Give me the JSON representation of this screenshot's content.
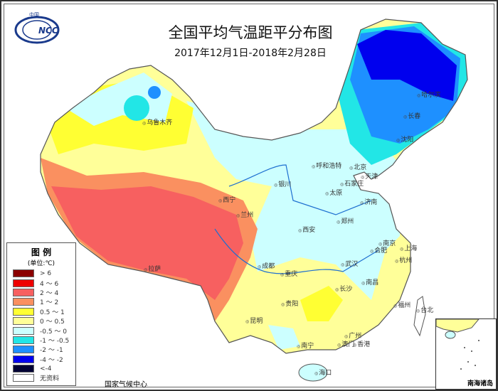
{
  "header": {
    "title": "全国平均气温距平分布图",
    "subtitle": "2017年12月1日-2018年2月28日",
    "logo_text": "NCC",
    "logo_top_text": "中国"
  },
  "legend": {
    "title": "图 例",
    "unit": "(单位:℃)",
    "items": [
      {
        "label": "> 6",
        "color": "#8b0000"
      },
      {
        "label": "4 ～ 6",
        "color": "#ee0000"
      },
      {
        "label": "2 ～ 4",
        "color": "#f76060"
      },
      {
        "label": "1 ～ 2",
        "color": "#fa9060"
      },
      {
        "label": "0.5 ～ 1",
        "color": "#ffff33"
      },
      {
        "label": "0 ～ 0.5",
        "color": "#ffff99"
      },
      {
        "label": "-0.5 ～ 0",
        "color": "#ccffff"
      },
      {
        "label": "-1 ～ -0.5",
        "color": "#22e6e6"
      },
      {
        "label": "-2 ～ -1",
        "color": "#1e90ff"
      },
      {
        "label": "-4 ～ -2",
        "color": "#0000ee"
      },
      {
        "label": "<-4",
        "color": "#000033"
      },
      {
        "label": "无资料",
        "color": "#ffffff"
      }
    ]
  },
  "map": {
    "cities": [
      "乌鲁木齐",
      "哈尔滨",
      "长春",
      "沈阳",
      "呼和浩特",
      "北京",
      "天津",
      "银川",
      "石家庄",
      "太原",
      "济南",
      "西宁",
      "兰州",
      "郑州",
      "西安",
      "南京",
      "合肥",
      "上海",
      "拉萨",
      "成都",
      "武汉",
      "杭州",
      "重庆",
      "长沙",
      "南昌",
      "贵阳",
      "福州",
      "台北",
      "昆明",
      "南宁",
      "广州",
      "香港",
      "澳门",
      "海口"
    ],
    "inset_label": "南海诸岛"
  },
  "footer": {
    "source": "国家气候中心"
  }
}
